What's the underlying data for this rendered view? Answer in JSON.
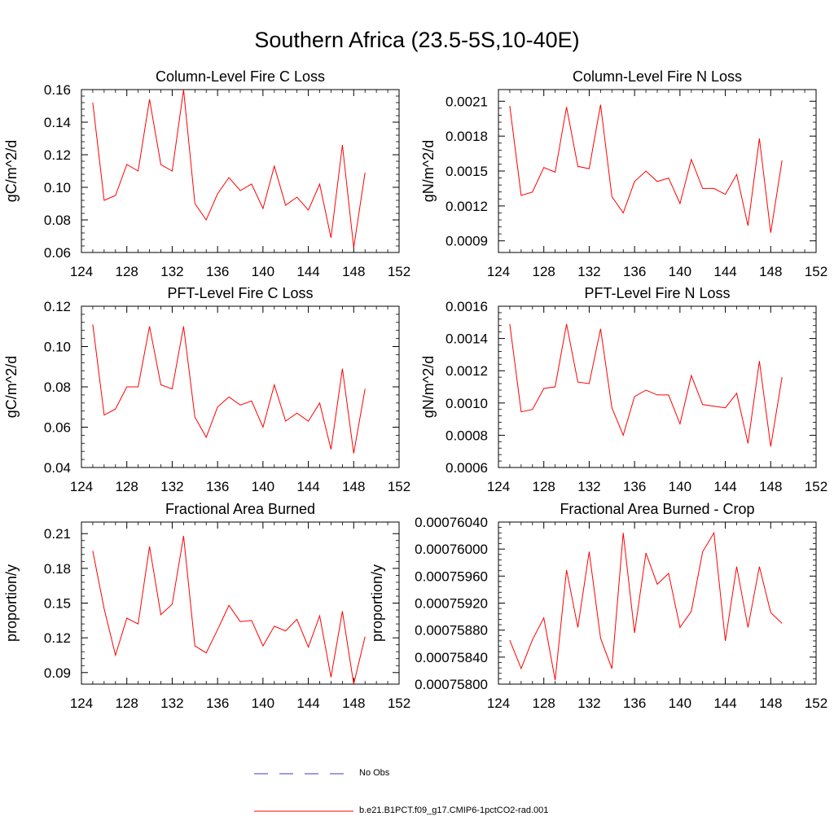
{
  "title": "Southern Africa (23.5-5S,10-40E)",
  "colors": {
    "model": "#ff0000",
    "obs": "#3a3ad6",
    "axis": "#000000"
  },
  "legend": {
    "obs_label": "No Obs",
    "model_label": "b.e21.B1PCT.f09_g17.CMIP6-1pctCO2-rad.001"
  },
  "chart_data": [
    {
      "type": "line",
      "title": "Column-Level Fire C Loss",
      "ylabel": "gC/m^2/d",
      "xlim": [
        124,
        152
      ],
      "ylim": [
        0.06,
        0.16
      ],
      "xticks": [
        124,
        128,
        132,
        136,
        140,
        144,
        148,
        152
      ],
      "xticklabels": [
        "124",
        "128",
        "132",
        "136",
        "140",
        "144",
        "148",
        "152"
      ],
      "yticks": [
        0.06,
        0.08,
        0.1,
        0.12,
        0.14,
        0.16
      ],
      "yticklabels": [
        "0.06",
        "0.08",
        "0.10",
        "0.12",
        "0.14",
        "0.16"
      ],
      "x": [
        125,
        126,
        127,
        128,
        129,
        130,
        131,
        132,
        133,
        134,
        135,
        136,
        137,
        138,
        139,
        140,
        141,
        142,
        143,
        144,
        145,
        146,
        147,
        148,
        149
      ],
      "series": [
        {
          "name": "b.e21.B1PCT.f09_g17.CMIP6-1pctCO2-rad.001",
          "values": [
            0.152,
            0.092,
            0.095,
            0.114,
            0.11,
            0.154,
            0.114,
            0.11,
            0.16,
            0.09,
            0.08,
            0.096,
            0.106,
            0.098,
            0.102,
            0.087,
            0.113,
            0.089,
            0.094,
            0.086,
            0.102,
            0.069,
            0.126,
            0.063,
            0.109
          ]
        }
      ]
    },
    {
      "type": "line",
      "title": "Column-Level Fire N Loss",
      "ylabel": "gN/m^2/d",
      "xlim": [
        124,
        152
      ],
      "ylim": [
        0.0008,
        0.0022
      ],
      "xticks": [
        124,
        128,
        132,
        136,
        140,
        144,
        148,
        152
      ],
      "xticklabels": [
        "124",
        "128",
        "132",
        "136",
        "140",
        "144",
        "148",
        "152"
      ],
      "yticks": [
        0.0009,
        0.0012,
        0.0015,
        0.0018,
        0.0021
      ],
      "yticklabels": [
        "0.0009",
        "0.0012",
        "0.0015",
        "0.0018",
        "0.0021"
      ],
      "x": [
        125,
        126,
        127,
        128,
        129,
        130,
        131,
        132,
        133,
        134,
        135,
        136,
        137,
        138,
        139,
        140,
        141,
        142,
        143,
        144,
        145,
        146,
        147,
        148,
        149
      ],
      "series": [
        {
          "name": "b.e21.B1PCT.f09_g17.CMIP6-1pctCO2-rad.001",
          "values": [
            0.00206,
            0.00129,
            0.00132,
            0.00153,
            0.00149,
            0.00205,
            0.00154,
            0.00152,
            0.00207,
            0.00128,
            0.00114,
            0.00141,
            0.0015,
            0.00141,
            0.00144,
            0.00122,
            0.0016,
            0.00135,
            0.00135,
            0.0013,
            0.00147,
            0.00103,
            0.00178,
            0.00097,
            0.00159
          ]
        }
      ]
    },
    {
      "type": "line",
      "title": "PFT-Level Fire C Loss",
      "ylabel": "gC/m^2/d",
      "xlim": [
        124,
        152
      ],
      "ylim": [
        0.04,
        0.12
      ],
      "xticks": [
        124,
        128,
        132,
        136,
        140,
        144,
        148,
        152
      ],
      "xticklabels": [
        "124",
        "128",
        "132",
        "136",
        "140",
        "144",
        "148",
        "152"
      ],
      "yticks": [
        0.04,
        0.06,
        0.08,
        0.1,
        0.12
      ],
      "yticklabels": [
        "0.04",
        "0.06",
        "0.08",
        "0.10",
        "0.12"
      ],
      "x": [
        125,
        126,
        127,
        128,
        129,
        130,
        131,
        132,
        133,
        134,
        135,
        136,
        137,
        138,
        139,
        140,
        141,
        142,
        143,
        144,
        145,
        146,
        147,
        148,
        149
      ],
      "series": [
        {
          "name": "b.e21.B1PCT.f09_g17.CMIP6-1pctCO2-rad.001",
          "values": [
            0.111,
            0.066,
            0.069,
            0.08,
            0.08,
            0.11,
            0.081,
            0.079,
            0.11,
            0.065,
            0.055,
            0.07,
            0.075,
            0.071,
            0.073,
            0.06,
            0.081,
            0.063,
            0.067,
            0.063,
            0.072,
            0.049,
            0.089,
            0.047,
            0.079
          ]
        }
      ]
    },
    {
      "type": "line",
      "title": "PFT-Level Fire N Loss",
      "ylabel": "gN/m^2/d",
      "xlim": [
        124,
        152
      ],
      "ylim": [
        0.0006,
        0.0016
      ],
      "xticks": [
        124,
        128,
        132,
        136,
        140,
        144,
        148,
        152
      ],
      "xticklabels": [
        "124",
        "128",
        "132",
        "136",
        "140",
        "144",
        "148",
        "152"
      ],
      "yticks": [
        0.0006,
        0.0008,
        0.001,
        0.0012,
        0.0014,
        0.0016
      ],
      "yticklabels": [
        "0.0006",
        "0.0008",
        "0.0010",
        "0.0012",
        "0.0014",
        "0.0016"
      ],
      "x": [
        125,
        126,
        127,
        128,
        129,
        130,
        131,
        132,
        133,
        134,
        135,
        136,
        137,
        138,
        139,
        140,
        141,
        142,
        143,
        144,
        145,
        146,
        147,
        148,
        149
      ],
      "series": [
        {
          "name": "b.e21.B1PCT.f09_g17.CMIP6-1pctCO2-rad.001",
          "values": [
            0.00149,
            0.000945,
            0.00096,
            0.00109,
            0.0011,
            0.00149,
            0.00113,
            0.00112,
            0.00146,
            0.00097,
            0.0008,
            0.00104,
            0.00108,
            0.00105,
            0.00105,
            0.00087,
            0.00117,
            0.00099,
            0.00098,
            0.00097,
            0.00106,
            0.00075,
            0.00126,
            0.00073,
            0.00116
          ]
        }
      ]
    },
    {
      "type": "line",
      "title": "Fractional Area Burned",
      "ylabel": "proportion/y",
      "xlim": [
        124,
        152
      ],
      "ylim": [
        0.08,
        0.22
      ],
      "xticks": [
        124,
        128,
        132,
        136,
        140,
        144,
        148,
        152
      ],
      "xticklabels": [
        "124",
        "128",
        "132",
        "136",
        "140",
        "144",
        "148",
        "152"
      ],
      "yticks": [
        0.09,
        0.12,
        0.15,
        0.18,
        0.21
      ],
      "yticklabels": [
        "0.09",
        "0.12",
        "0.15",
        "0.18",
        "0.21"
      ],
      "x": [
        125,
        126,
        127,
        128,
        129,
        130,
        131,
        132,
        133,
        134,
        135,
        136,
        137,
        138,
        139,
        140,
        141,
        142,
        143,
        144,
        145,
        146,
        147,
        148,
        149
      ],
      "series": [
        {
          "name": "b.e21.B1PCT.f09_g17.CMIP6-1pctCO2-rad.001",
          "values": [
            0.195,
            0.145,
            0.105,
            0.137,
            0.132,
            0.199,
            0.14,
            0.149,
            0.208,
            0.113,
            0.107,
            0.127,
            0.148,
            0.134,
            0.135,
            0.113,
            0.13,
            0.126,
            0.136,
            0.112,
            0.139,
            0.086,
            0.143,
            0.08,
            0.121
          ]
        }
      ]
    },
    {
      "type": "line",
      "title": "Fractional Area Burned - Crop",
      "ylabel": "proportion/y",
      "xlim": [
        124,
        152
      ],
      "ylim": [
        0.000758,
        0.0007604
      ],
      "xticks": [
        124,
        128,
        132,
        136,
        140,
        144,
        148,
        152
      ],
      "xticklabels": [
        "124",
        "128",
        "132",
        "136",
        "140",
        "144",
        "148",
        "152"
      ],
      "yticks": [
        0.000758,
        0.0007584,
        0.0007588,
        0.0007592,
        0.0007596,
        0.00076,
        0.0007604
      ],
      "yticklabels": [
        "0.00075800",
        "0.00075840",
        "0.00075880",
        "0.00075920",
        "0.00075960",
        "0.00076000",
        "0.00076040"
      ],
      "x": [
        125,
        126,
        127,
        128,
        129,
        130,
        131,
        132,
        133,
        134,
        135,
        136,
        137,
        138,
        139,
        140,
        141,
        142,
        143,
        144,
        145,
        146,
        147,
        148,
        149
      ],
      "series": [
        {
          "name": "b.e21.B1PCT.f09_g17.CMIP6-1pctCO2-rad.001",
          "values": [
            0.00075865,
            0.00075823,
            0.00075866,
            0.00075898,
            0.00075806,
            0.00075969,
            0.00075884,
            0.00075996,
            0.00075868,
            0.00075823,
            0.00076024,
            0.00075876,
            0.00075994,
            0.00075948,
            0.00075964,
            0.00075884,
            0.00075908,
            0.00075996,
            0.00076024,
            0.00075864,
            0.00075974,
            0.00075884,
            0.00075974,
            0.00075906,
            0.0007589
          ]
        }
      ]
    }
  ]
}
